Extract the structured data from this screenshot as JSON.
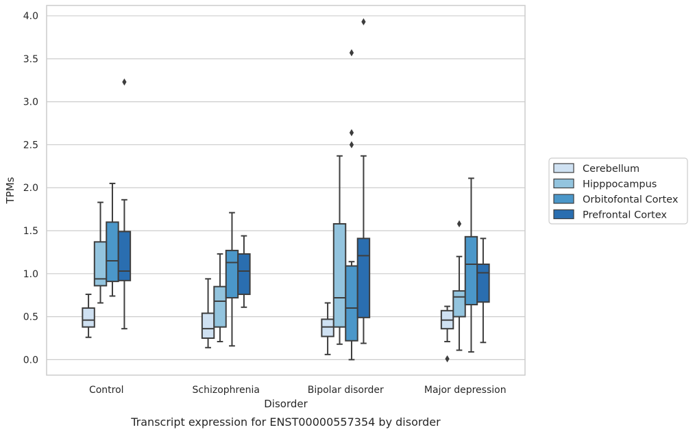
{
  "chart_data": {
    "type": "box",
    "caption": "Transcript expression for ENST00000557354 by disorder",
    "xlabel": "Disorder",
    "ylabel": "TPMs",
    "ylim": [
      -0.18,
      4.12
    ],
    "yticks": [
      "0.0",
      "0.5",
      "1.0",
      "1.5",
      "2.0",
      "2.5",
      "3.0",
      "3.5",
      "4.0"
    ],
    "grid": true,
    "legend_position": "right",
    "categories": [
      "Control",
      "Schizophrenia",
      "Bipolar disorder",
      "Major depression"
    ],
    "series": [
      {
        "name": "Cerebellum",
        "color": "#cfe1f2",
        "boxes": [
          {
            "whislo": 0.26,
            "q1": 0.38,
            "med": 0.46,
            "q3": 0.6,
            "whishi": 0.76,
            "fliers": []
          },
          {
            "whislo": 0.14,
            "q1": 0.25,
            "med": 0.36,
            "q3": 0.54,
            "whishi": 0.94,
            "fliers": []
          },
          {
            "whislo": 0.06,
            "q1": 0.27,
            "med": 0.38,
            "q3": 0.47,
            "whishi": 0.66,
            "fliers": []
          },
          {
            "whislo": 0.21,
            "q1": 0.36,
            "med": 0.46,
            "q3": 0.57,
            "whishi": 0.62,
            "fliers": [
              0.01
            ]
          }
        ]
      },
      {
        "name": "Hipppocampus",
        "color": "#93c4de",
        "boxes": [
          {
            "whislo": 0.66,
            "q1": 0.86,
            "med": 0.94,
            "q3": 1.37,
            "whishi": 1.83,
            "fliers": []
          },
          {
            "whislo": 0.21,
            "q1": 0.38,
            "med": 0.68,
            "q3": 0.85,
            "whishi": 1.23,
            "fliers": []
          },
          {
            "whislo": 0.18,
            "q1": 0.38,
            "med": 0.72,
            "q3": 1.58,
            "whishi": 2.37,
            "fliers": []
          },
          {
            "whislo": 0.11,
            "q1": 0.5,
            "med": 0.73,
            "q3": 0.8,
            "whishi": 1.2,
            "fliers": [
              1.58
            ]
          }
        ]
      },
      {
        "name": "Orbitofontal Cortex",
        "color": "#4b97c9",
        "boxes": [
          {
            "whislo": 0.74,
            "q1": 0.91,
            "med": 1.15,
            "q3": 1.6,
            "whishi": 2.05,
            "fliers": []
          },
          {
            "whislo": 0.16,
            "q1": 0.72,
            "med": 1.13,
            "q3": 1.27,
            "whishi": 1.71,
            "fliers": []
          },
          {
            "whislo": 0.0,
            "q1": 0.22,
            "med": 0.6,
            "q3": 1.09,
            "whishi": 1.14,
            "fliers": [
              2.5,
              2.64,
              3.57
            ]
          },
          {
            "whislo": 0.09,
            "q1": 0.64,
            "med": 1.11,
            "q3": 1.43,
            "whishi": 2.11,
            "fliers": []
          }
        ]
      },
      {
        "name": "Prefrontal Cortex",
        "color": "#2a6eb0",
        "boxes": [
          {
            "whislo": 0.36,
            "q1": 0.92,
            "med": 1.03,
            "q3": 1.49,
            "whishi": 1.86,
            "fliers": [
              3.23
            ]
          },
          {
            "whislo": 0.61,
            "q1": 0.76,
            "med": 1.03,
            "q3": 1.23,
            "whishi": 1.44,
            "fliers": []
          },
          {
            "whislo": 0.19,
            "q1": 0.49,
            "med": 1.21,
            "q3": 1.41,
            "whishi": 2.37,
            "fliers": [
              3.93
            ]
          },
          {
            "whislo": 0.2,
            "q1": 0.67,
            "med": 1.01,
            "q3": 1.11,
            "whishi": 1.41,
            "fliers": []
          }
        ]
      }
    ]
  }
}
